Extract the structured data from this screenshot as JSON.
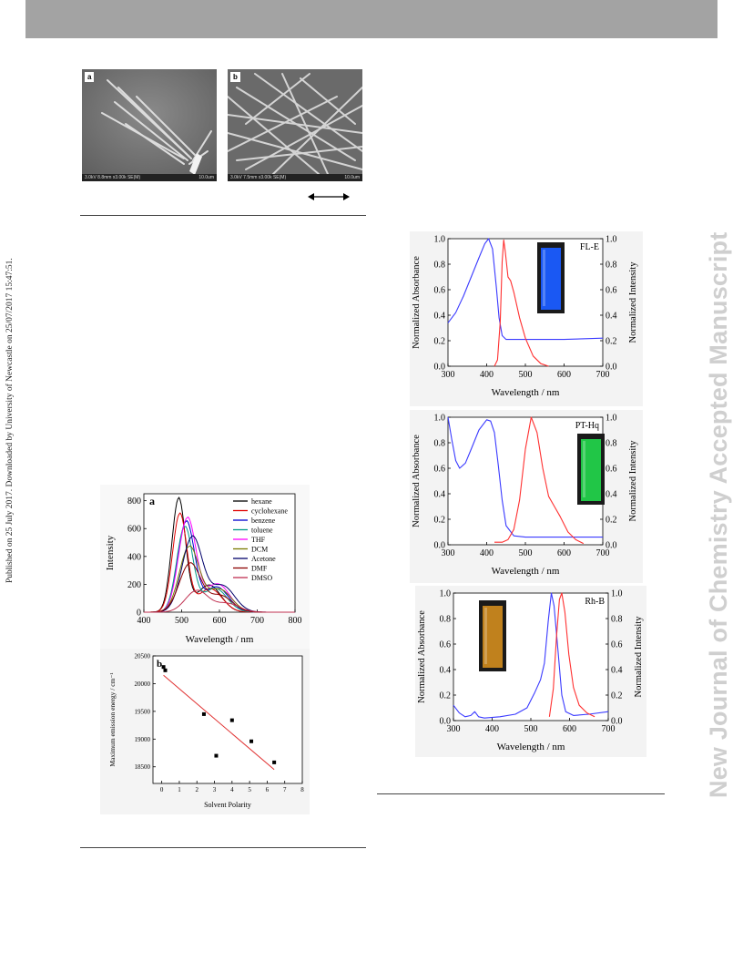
{
  "side_left_text": "Published on 25 July 2017. Downloaded by University of Newcastle on 25/07/2017 15:47:51.",
  "side_right_text": "New Journal of Chemistry Accepted Manuscript",
  "sem": {
    "a": {
      "label": "a",
      "footer": "3.0kV 8.8mm x3.00k SE(M)",
      "scale": "10.0um"
    },
    "b": {
      "label": "b",
      "footer": "3.0kV 7.5mm x3.00k SE(M)",
      "scale": "10.0um"
    }
  },
  "colors": {
    "blue": "#3a3aff",
    "red": "#ff3030",
    "topbar": "#a3a3a3",
    "watermark": "#cfcfcf"
  },
  "chart_data": [
    {
      "id": "emission-solvents",
      "type": "line",
      "panel_label": "a",
      "xlabel": "Wavelength / nm",
      "ylabel": "Intensity",
      "xlim": [
        400,
        800
      ],
      "ylim": [
        0,
        850
      ],
      "xticks": [
        "400",
        "500",
        "600",
        "700",
        "800"
      ],
      "yticks": [
        "0",
        "200",
        "400",
        "600",
        "800"
      ],
      "legend_position": "top-right",
      "series": [
        {
          "name": "hexane",
          "color": "#000000",
          "peak": 492,
          "height": 815,
          "width": 18,
          "shoulder": 0.24
        },
        {
          "name": "cyclohexane",
          "color": "#e00000",
          "peak": 495,
          "height": 705,
          "width": 19,
          "shoulder": 0.24
        },
        {
          "name": "benzene",
          "color": "#0000d0",
          "peak": 512,
          "height": 650,
          "width": 22,
          "shoulder": 0.28
        },
        {
          "name": "toluene",
          "color": "#009a88",
          "peak": 508,
          "height": 612,
          "width": 21,
          "shoulder": 0.28
        },
        {
          "name": "THF",
          "color": "#ff00ff",
          "peak": 515,
          "height": 675,
          "width": 23,
          "shoulder": 0.3
        },
        {
          "name": "DCM",
          "color": "#7a7a00",
          "peak": 520,
          "height": 470,
          "width": 26,
          "shoulder": 0.35
        },
        {
          "name": "Acetone",
          "color": "#00006a",
          "peak": 528,
          "height": 540,
          "width": 27,
          "shoulder": 0.35
        },
        {
          "name": "DMF",
          "color": "#8b0000",
          "peak": 522,
          "height": 350,
          "width": 28,
          "shoulder": 0.34
        },
        {
          "name": "DMSO",
          "color": "#c03050",
          "peak": 540,
          "height": 155,
          "width": 30,
          "shoulder": 0.4
        }
      ]
    },
    {
      "id": "emission-energy-vs-polarity",
      "type": "scatter",
      "panel_label": "b",
      "xlabel": "Solvent Polarity",
      "ylabel": "Maximum emission energy / cm⁻¹",
      "xlim": [
        -0.5,
        8
      ],
      "ylim": [
        18200,
        20500
      ],
      "xticks": [
        "0",
        "1",
        "2",
        "3",
        "4",
        "5",
        "6",
        "7",
        "8"
      ],
      "yticks": [
        "18500",
        "19000",
        "19500",
        "20000",
        "20500"
      ],
      "points": [
        [
          0.1,
          20300
        ],
        [
          0.2,
          20240
        ],
        [
          2.4,
          19450
        ],
        [
          3.1,
          18700
        ],
        [
          4.0,
          19340
        ],
        [
          5.1,
          18960
        ],
        [
          6.4,
          18580
        ]
      ],
      "fit": [
        [
          0.1,
          20150
        ],
        [
          6.4,
          18450
        ]
      ]
    },
    {
      "id": "FL-E",
      "type": "line",
      "sample_label": "FL-E",
      "xlabel": "Wavelength / nm",
      "ylabel_left": "Normalized Absorbance",
      "ylabel_right": "Normalized Intensity",
      "xlim": [
        300,
        700
      ],
      "ylim": [
        0,
        1.0
      ],
      "xticks": [
        "300",
        "400",
        "500",
        "600",
        "700"
      ],
      "yticks": [
        "0.0",
        "0.2",
        "0.4",
        "0.6",
        "0.8",
        "1.0"
      ],
      "vial_color": "#1a5cff",
      "series": [
        {
          "name": "Absorbance",
          "color": "#3a3aff",
          "points": [
            [
              300,
              0.34
            ],
            [
              320,
              0.42
            ],
            [
              340,
              0.55
            ],
            [
              360,
              0.7
            ],
            [
              380,
              0.85
            ],
            [
              395,
              0.96
            ],
            [
              405,
              1.0
            ],
            [
              415,
              0.92
            ],
            [
              425,
              0.62
            ],
            [
              432,
              0.38
            ],
            [
              440,
              0.24
            ],
            [
              450,
              0.21
            ],
            [
              500,
              0.21
            ],
            [
              600,
              0.21
            ],
            [
              700,
              0.22
            ]
          ]
        },
        {
          "name": "Emission",
          "color": "#ff3030",
          "points": [
            [
              420,
              0.0
            ],
            [
              428,
              0.05
            ],
            [
              435,
              0.35
            ],
            [
              440,
              0.82
            ],
            [
              444,
              0.99
            ],
            [
              448,
              0.9
            ],
            [
              455,
              0.7
            ],
            [
              462,
              0.67
            ],
            [
              470,
              0.58
            ],
            [
              485,
              0.38
            ],
            [
              500,
              0.22
            ],
            [
              520,
              0.08
            ],
            [
              540,
              0.02
            ],
            [
              560,
              0.0
            ]
          ]
        }
      ]
    },
    {
      "id": "PT-Hq",
      "type": "line",
      "sample_label": "PT-Hq",
      "xlabel": "Wavelength / nm",
      "ylabel_left": "Normalized Absorbance",
      "ylabel_right": "Normalized Intensity",
      "xlim": [
        300,
        700
      ],
      "ylim": [
        0,
        1.0
      ],
      "xticks": [
        "300",
        "400",
        "500",
        "600",
        "700"
      ],
      "yticks": [
        "0.0",
        "0.2",
        "0.4",
        "0.6",
        "0.8",
        "1.0"
      ],
      "vial_color": "#22d04a",
      "series": [
        {
          "name": "Absorbance",
          "color": "#3a3aff",
          "points": [
            [
              300,
              1.0
            ],
            [
              310,
              0.82
            ],
            [
              320,
              0.66
            ],
            [
              330,
              0.6
            ],
            [
              345,
              0.64
            ],
            [
              360,
              0.75
            ],
            [
              380,
              0.9
            ],
            [
              400,
              0.98
            ],
            [
              410,
              0.97
            ],
            [
              420,
              0.88
            ],
            [
              430,
              0.62
            ],
            [
              440,
              0.35
            ],
            [
              450,
              0.15
            ],
            [
              470,
              0.07
            ],
            [
              500,
              0.06
            ],
            [
              600,
              0.06
            ],
            [
              700,
              0.06
            ]
          ]
        },
        {
          "name": "Emission",
          "color": "#ff3030",
          "points": [
            [
              420,
              0.02
            ],
            [
              440,
              0.02
            ],
            [
              455,
              0.04
            ],
            [
              470,
              0.12
            ],
            [
              485,
              0.35
            ],
            [
              500,
              0.75
            ],
            [
              515,
              1.0
            ],
            [
              530,
              0.88
            ],
            [
              545,
              0.6
            ],
            [
              560,
              0.38
            ],
            [
              575,
              0.3
            ],
            [
              590,
              0.22
            ],
            [
              610,
              0.1
            ],
            [
              630,
              0.04
            ],
            [
              650,
              0.01
            ]
          ]
        }
      ]
    },
    {
      "id": "Rh-B",
      "type": "line",
      "sample_label": "Rh-B",
      "xlabel": "Wavelength / nm",
      "ylabel_left": "Normalized Absorbance",
      "ylabel_right": "Normalized Intensity",
      "xlim": [
        300,
        700
      ],
      "ylim": [
        0,
        1.0
      ],
      "xticks": [
        "300",
        "400",
        "500",
        "600",
        "700"
      ],
      "yticks": [
        "0.0",
        "0.2",
        "0.4",
        "0.6",
        "0.8",
        "1.0"
      ],
      "vial_color": "#c9871e",
      "series": [
        {
          "name": "Absorbance",
          "color": "#3a3aff",
          "points": [
            [
              300,
              0.12
            ],
            [
              315,
              0.06
            ],
            [
              330,
              0.03
            ],
            [
              345,
              0.04
            ],
            [
              355,
              0.07
            ],
            [
              365,
              0.03
            ],
            [
              380,
              0.02
            ],
            [
              420,
              0.03
            ],
            [
              460,
              0.05
            ],
            [
              490,
              0.1
            ],
            [
              510,
              0.22
            ],
            [
              525,
              0.32
            ],
            [
              535,
              0.45
            ],
            [
              545,
              0.78
            ],
            [
              553,
              1.0
            ],
            [
              560,
              0.9
            ],
            [
              570,
              0.55
            ],
            [
              580,
              0.2
            ],
            [
              590,
              0.07
            ],
            [
              610,
              0.04
            ],
            [
              650,
              0.05
            ],
            [
              700,
              0.07
            ]
          ]
        },
        {
          "name": "Emission",
          "color": "#ff3030",
          "points": [
            [
              548,
              0.03
            ],
            [
              558,
              0.25
            ],
            [
              566,
              0.65
            ],
            [
              574,
              0.95
            ],
            [
              580,
              1.0
            ],
            [
              588,
              0.85
            ],
            [
              598,
              0.52
            ],
            [
              610,
              0.26
            ],
            [
              625,
              0.12
            ],
            [
              645,
              0.06
            ],
            [
              665,
              0.03
            ]
          ]
        }
      ]
    }
  ]
}
